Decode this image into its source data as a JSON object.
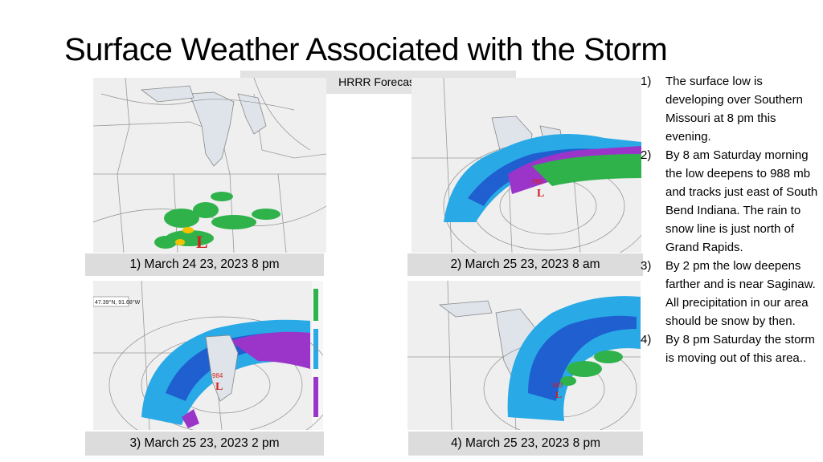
{
  "slide": {
    "title": "Surface Weather Associated with the Storm",
    "forecast_label": "HRRR Forecast"
  },
  "maps": [
    {
      "caption": "1)  March 24 23, 2023   8 pm",
      "low_label": "L",
      "low_value": ""
    },
    {
      "caption": "2)  March 25 23, 2023  8 am",
      "low_label": "L",
      "low_value": "988"
    },
    {
      "caption": "3)  March 25 23, 2023  2  pm",
      "low_label": "L",
      "low_value": "984",
      "coord_readout": "47.39°N, 91.68°W"
    },
    {
      "caption": "4) March 25 23, 2023  8  pm",
      "low_label": "L",
      "low_value": "983"
    }
  ],
  "notes": [
    {
      "num": "1)",
      "text": "The surface low is developing over Southern Missouri  at 8 pm this evening."
    },
    {
      "num": "2)",
      "text": "By 8 am Saturday morning the low deepens to 988 mb and tracks just east of South Bend Indiana. The rain to snow line is just north of Grand Rapids."
    },
    {
      "num": "3)",
      "text": " By 2 pm the low deepens farther and is near Saginaw.  All precipitation in our area should be snow by then."
    },
    {
      "num": "4)",
      "text": "By 8 pm Saturday the storm is moving out of this area.."
    }
  ],
  "colors": {
    "rain": "#2fb24a",
    "snow": "#29a9e6",
    "snow_heavy": "#1f5fd0",
    "mix": "#9b35c9",
    "low_marker": "#d42020",
    "caption_bg": "#dcdcdc"
  }
}
